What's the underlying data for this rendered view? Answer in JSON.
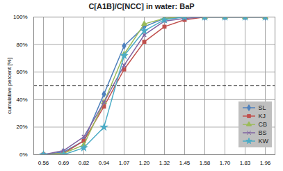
{
  "chart_data": {
    "type": "line",
    "title": "C[A1B]/C[NCC] in water: BaP",
    "y_label": "cumulative percent [%]",
    "categories": [
      "0.56",
      "0.69",
      "0.82",
      "0.94",
      "1.07",
      "1.20",
      "1.32",
      "1.45",
      "1.58",
      "1.70",
      "1.83",
      "1.96"
    ],
    "series": [
      {
        "name": "SL",
        "color": "#4f81bd",
        "marker": "diamond",
        "values": [
          0,
          2,
          10,
          44,
          79,
          93,
          99,
          100,
          100,
          100,
          100,
          100
        ]
      },
      {
        "name": "KJ",
        "color": "#c0504d",
        "marker": "square",
        "values": [
          0,
          1,
          10,
          35,
          62,
          82,
          93,
          98,
          100,
          100,
          100,
          100
        ]
      },
      {
        "name": "CB",
        "color": "#9bbb59",
        "marker": "triangle",
        "values": [
          0,
          1,
          7,
          38,
          73,
          95,
          99,
          100,
          100,
          100,
          100,
          100
        ]
      },
      {
        "name": "BS",
        "color": "#8064a2",
        "marker": "times",
        "values": [
          0,
          3,
          13,
          38,
          65,
          87,
          97,
          99,
          100,
          100,
          100,
          100
        ]
      },
      {
        "name": "KW",
        "color": "#4bacc6",
        "marker": "star",
        "values": [
          0,
          0,
          5,
          20,
          72,
          90,
          98,
          100,
          100,
          100,
          100,
          100
        ]
      }
    ],
    "ylim": [
      0,
      100
    ],
    "yticks": [
      {
        "value": 0,
        "label": "0%"
      },
      {
        "value": 20,
        "label": "20%"
      },
      {
        "value": 40,
        "label": "40%"
      },
      {
        "value": 60,
        "label": "60%"
      },
      {
        "value": 80,
        "label": "80%"
      },
      {
        "value": 100,
        "label": "100%"
      }
    ],
    "reference_value": 50,
    "grid": true,
    "legend": "lower right"
  }
}
